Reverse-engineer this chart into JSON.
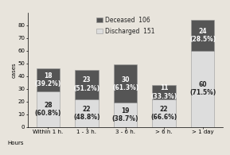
{
  "categories": [
    "Within 1 h.",
    "1 - 3 h.",
    "3 - 6 h.",
    "> 6 h.",
    "> 1 day"
  ],
  "xlabel_prefix": "Hours",
  "deceased": [
    18,
    23,
    30,
    11,
    24
  ],
  "discharged": [
    28,
    22,
    19,
    22,
    60
  ],
  "deceased_pct": [
    "(39.2%)",
    "(51.2%)",
    "(61.3%)",
    "(33.3%)",
    "(28.5%)"
  ],
  "discharged_pct": [
    "(60.8%)",
    "(48.8%)",
    "(38.7%)",
    "(66.6%)",
    "(71.5%)"
  ],
  "deceased_color": "#555555",
  "discharged_color": "#dddddd",
  "deceased_label": "Deceased  106",
  "discharged_label": "Discharged  151",
  "ylabel": "cases",
  "ylim": [
    0,
    90
  ],
  "yticks": [
    0,
    10,
    20,
    30,
    40,
    50,
    60,
    70,
    80
  ],
  "legend_fontsize": 5.5,
  "tick_fontsize": 5.0,
  "bar_label_fontsize": 5.5,
  "bar_width": 0.6,
  "bg_color": "#e8e4dc"
}
